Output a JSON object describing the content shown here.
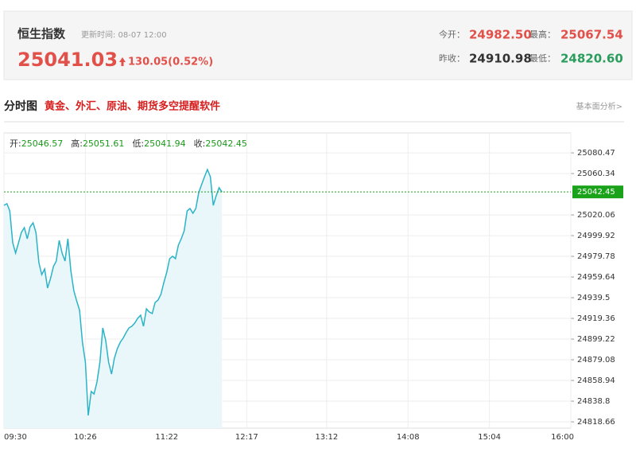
{
  "header": {
    "title": "恒生指数",
    "update": "更新时间: 08-07 12:00",
    "price": "25041.03",
    "change": "130.05(0.52%)",
    "stats": [
      {
        "label": "今开：",
        "value": "24982.50"
      },
      {
        "label": "最高：",
        "value": "25067.54"
      },
      {
        "label": "昨收：",
        "value": "24910.98"
      },
      {
        "label": "最低：",
        "value": "24820.60"
      }
    ]
  },
  "section": {
    "title": "分时图",
    "promo": "黄金、外汇、原油、期货多空提醒软件",
    "link": "基本面分析>"
  },
  "chart_data": {
    "type": "line",
    "ohlc": [
      {
        "label": "开:",
        "value": 25046.57
      },
      {
        "label": "高:",
        "value": 25051.61
      },
      {
        "label": "低:",
        "value": 25041.94
      },
      {
        "label": "收:",
        "value": 25042.45
      }
    ],
    "current": 25042.45,
    "xlim": [
      0,
      390
    ],
    "xticks": [
      {
        "value": 0,
        "label": "09:30"
      },
      {
        "value": 56,
        "label": "10:26"
      },
      {
        "value": 112,
        "label": "11:22"
      },
      {
        "value": 167,
        "label": "12:17"
      },
      {
        "value": 222,
        "label": "13:12"
      },
      {
        "value": 278,
        "label": "14:08"
      },
      {
        "value": 334,
        "label": "15:04"
      },
      {
        "value": 390,
        "label": "16:00"
      }
    ],
    "ylim": [
      24812.5,
      25099.9
    ],
    "yticks": [
      25080.47,
      25060.34,
      25020.06,
      24999.92,
      24979.78,
      24959.64,
      24939.5,
      24919.36,
      24899.22,
      24879.08,
      24858.94,
      24838.8,
      24818.66
    ],
    "grid": true,
    "series": [
      {
        "color": "#2bb3c6",
        "x": [
          0,
          2,
          4,
          6,
          8,
          10,
          12,
          14,
          16,
          18,
          20,
          22,
          24,
          26,
          28,
          30,
          32,
          34,
          36,
          38,
          40,
          42,
          44,
          46,
          48,
          50,
          52,
          54,
          56,
          58,
          60,
          62,
          64,
          66,
          68,
          70,
          72,
          74,
          76,
          78,
          80,
          82,
          84,
          86,
          88,
          90,
          92,
          94,
          96,
          98,
          100,
          102,
          104,
          106,
          108,
          110,
          112,
          114,
          116,
          118,
          120,
          122,
          124,
          126,
          128,
          130,
          132,
          134,
          136,
          138,
          140,
          142,
          144,
          146,
          148,
          150
        ],
        "values": [
          25029.4,
          25031.0,
          25024.0,
          24993.0,
          24982.9,
          24993.0,
          25003.1,
          25007.7,
          24996.9,
          25008.5,
          25012.4,
          25003.1,
          24973.6,
          24962.0,
          24967.4,
          24948.9,
          24958.1,
          24969.8,
          24975.2,
          24995.3,
          24982.9,
          24975.2,
          24996.9,
          24965.9,
          24946.5,
          24936.5,
          24927.2,
          24896.2,
          24876.8,
          24824.9,
          24848.2,
          24845.8,
          24857.5,
          24876.8,
          24910.1,
          24897.7,
          24876.8,
          24865.2,
          24880.7,
          24890.0,
          24896.2,
          24900.1,
          24905.5,
          24910.1,
          24911.7,
          24914.8,
          24919.4,
          24922.5,
          24911.7,
          24928.7,
          24925.6,
          24924.1,
          24934.9,
          24937.2,
          24942.7,
          24954.3,
          24964.3,
          24977.5,
          24979.8,
          24977.5,
          24990.7,
          24996.9,
          25004.6,
          25024.0,
          25026.3,
          25021.7,
          25026.3,
          25041.8,
          25049.6,
          25057.3,
          25064.3,
          25057.3,
          25029.4,
          25038.7,
          25046.5,
          25042.45
        ]
      }
    ]
  }
}
